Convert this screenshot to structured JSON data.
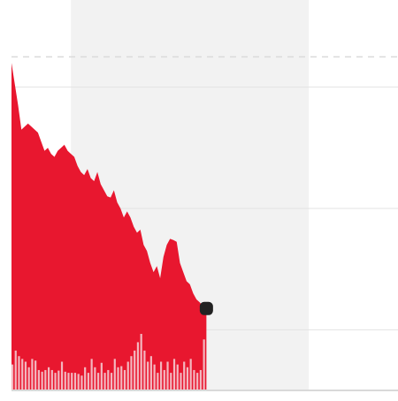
{
  "chart_data": {
    "type": "area",
    "grid": true,
    "legend": "none",
    "title": "",
    "xlabel": "",
    "ylabel": "",
    "colors": {
      "area": "#e8172f",
      "volume_bar": "#f3b7bf",
      "highlight_band": "#f2f2f2",
      "gridline": "#e3e3e3",
      "reference_line": "#dadada",
      "last_point_marker": "#222222",
      "baseline": "#d9d9d9"
    },
    "xlim": [
      0,
      117
    ],
    "ylim": [
      100,
      160
    ],
    "highlight_band_x": [
      18,
      90
    ],
    "reference_line_y": 155,
    "gridlines_y": [
      150,
      130,
      110
    ],
    "series": [
      {
        "kind": "price",
        "x": [
          0,
          2,
          3,
          5,
          6,
          8,
          9,
          10,
          11,
          12,
          13,
          14,
          15,
          16,
          17,
          18,
          19,
          20,
          21,
          22,
          23,
          24,
          25,
          26,
          27,
          28,
          29,
          30,
          31,
          32,
          33,
          34,
          35,
          36,
          37,
          38,
          39,
          40,
          41,
          42,
          43,
          44,
          45,
          46,
          47,
          48,
          49,
          50,
          51,
          52,
          53,
          54,
          55,
          56,
          57,
          58,
          59
        ],
        "values": [
          154,
          147,
          143,
          144,
          143.5,
          142.5,
          141,
          139.5,
          140,
          139,
          138.5,
          139.5,
          140,
          140.5,
          139.5,
          139,
          138.5,
          137,
          136,
          135.5,
          136.5,
          135,
          134.5,
          136,
          134,
          133,
          132,
          131.8,
          133,
          131,
          130,
          128.5,
          129.5,
          128.5,
          127,
          126,
          126.5,
          124,
          123,
          121,
          119.5,
          120.5,
          118.5,
          122,
          124,
          125,
          124.8,
          124.5,
          121,
          119.5,
          118,
          117.5,
          116,
          115,
          114.5,
          113.8,
          113.5
        ]
      },
      {
        "kind": "volume",
        "x": [
          0,
          1,
          2,
          3,
          4,
          5,
          6,
          7,
          8,
          9,
          10,
          11,
          12,
          13,
          14,
          15,
          16,
          17,
          18,
          19,
          20,
          21,
          22,
          23,
          24,
          25,
          26,
          27,
          28,
          29,
          30,
          31,
          32,
          33,
          34,
          35,
          36,
          37,
          38,
          39,
          40,
          41,
          42,
          43,
          44,
          45,
          46,
          47,
          48,
          49,
          50,
          51,
          52,
          53,
          54,
          55,
          56,
          57,
          58
        ],
        "values": [
          0.45,
          0.7,
          0.6,
          0.55,
          0.5,
          0.4,
          0.55,
          0.52,
          0.35,
          0.32,
          0.35,
          0.4,
          0.35,
          0.3,
          0.34,
          0.5,
          0.32,
          0.3,
          0.3,
          0.3,
          0.28,
          0.25,
          0.4,
          0.3,
          0.55,
          0.4,
          0.3,
          0.48,
          0.3,
          0.35,
          0.3,
          0.55,
          0.4,
          0.42,
          0.35,
          0.5,
          0.6,
          0.7,
          0.85,
          1.0,
          0.7,
          0.5,
          0.6,
          0.45,
          0.3,
          0.5,
          0.35,
          0.5,
          0.3,
          0.55,
          0.45,
          0.3,
          0.5,
          0.4,
          0.55,
          0.35,
          0.3,
          0.35,
          0.9
        ]
      }
    ]
  }
}
